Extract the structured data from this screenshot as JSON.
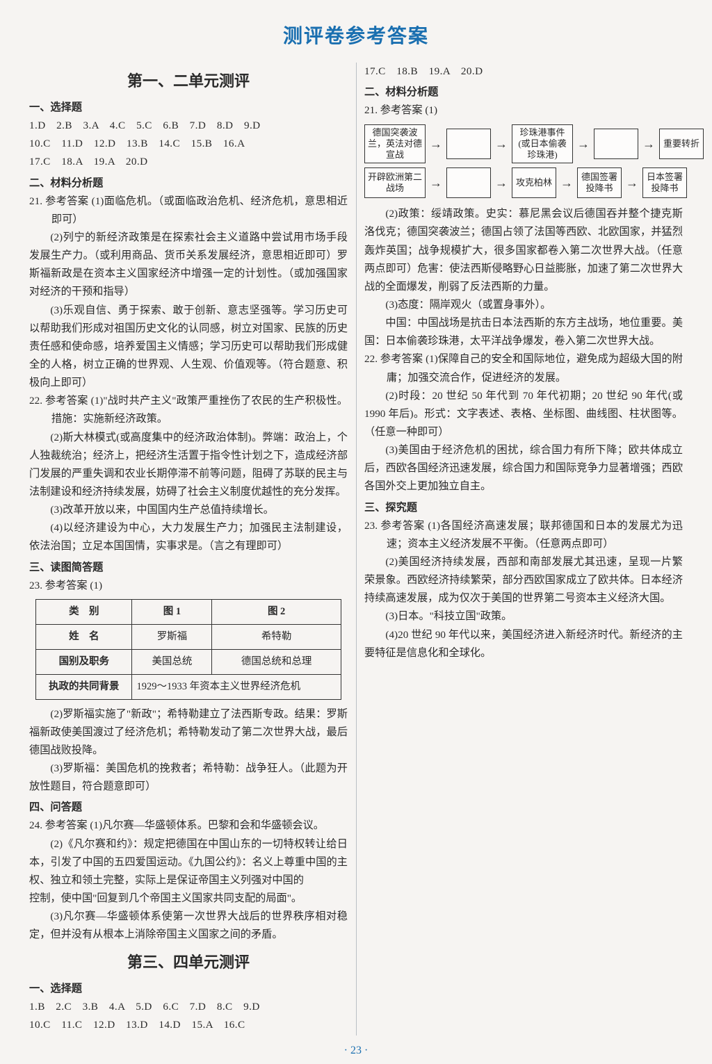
{
  "page_title": "测评卷参考答案",
  "page_number": "· 23 ·",
  "unit1": {
    "title": "第一、二单元测评",
    "sec_choice_title": "一、选择题",
    "choice_answers": [
      "1.D　2.B　3.A　4.C　5.C　6.B　7.D　8.D　9.D",
      "10.C　11.D　12.D　13.B　14.C　15.B　16.A",
      "17.C　18.A　19.A　20.D"
    ],
    "sec_material_title": "二、材料分析题",
    "q21_head": "21. 参考答案 (1)面临危机。（或面临政治危机、经济危机，意思相近即可）",
    "q21_p2": "(2)列宁的新经济政策是在探索社会主义道路中尝试用市场手段发展生产力。（或利用商品、货币关系发展经济，意思相近即可）罗斯福新政是在资本主义国家经济中增强一定的计划性。（或加强国家对经济的干预和指导）",
    "q21_p3": "(3)乐观自信、勇于探索、敢于创新、意志坚强等。学习历史可以帮助我们形成对祖国历史文化的认同感，树立对国家、民族的历史责任感和使命感，培养爱国主义情感；学习历史可以帮助我们形成健全的人格，树立正确的世界观、人生观、价值观等。（符合题意、积极向上即可）",
    "q22_head": "22. 参考答案 (1)\"战时共产主义\"政策严重挫伤了农民的生产积极性。措施：实施新经济政策。",
    "q22_p2": "(2)斯大林模式(或高度集中的经济政治体制)。弊端：政治上，个人独裁统治；经济上，把经济生活置于指令性计划之下，造成经济部门发展的严重失调和农业长期停滞不前等问题，阻碍了苏联的民主与法制建设和经济持续发展，妨碍了社会主义制度优越性的充分发挥。",
    "q22_p3": "(3)改革开放以来，中国国内生产总值持续增长。",
    "q22_p4": "(4)以经济建设为中心，大力发展生产力；加强民主法制建设，依法治国；立足本国国情，实事求是。（言之有理即可）",
    "sec_read_title": "三、读图简答题",
    "q23_head": "23. 参考答案 (1)",
    "table": {
      "headers": [
        "类　别",
        "图 1",
        "图 2"
      ],
      "rows": [
        [
          "姓　名",
          "罗斯福",
          "希特勒"
        ],
        [
          "国别及职务",
          "美国总统",
          "德国总统和总理"
        ]
      ],
      "span_row_label": "执政的共同背景",
      "span_row_value": "1929～1933 年资本主义世界经济危机"
    },
    "q23_p2": "(2)罗斯福实施了\"新政\"；希特勒建立了法西斯专政。结果：罗斯福新政使美国渡过了经济危机；希特勒发动了第二次世界大战，最后德国战败投降。",
    "q23_p3": "(3)罗斯福：美国危机的挽救者；希特勒：战争狂人。（此题为开放性题目，符合题意即可）",
    "sec_ask_title": "四、问答题",
    "q24_head": "24. 参考答案 (1)凡尔赛—华盛顿体系。巴黎和会和华盛顿会议。",
    "q24_p2": "(2)《凡尔赛和约》：规定把德国在中国山东的一切特权转让给日本，引发了中国的五四爱国运动。《九国公约》：名义上尊重中国的主权、独立和领土完整，实际上是保证帝国主义列强对中国的",
    "q24_cont": "控制，使中国\"回复到几个帝国主义国家共同支配的局面\"。",
    "q24_p3": "(3)凡尔赛—华盛顿体系使第一次世界大战后的世界秩序相对稳定，但并没有从根本上消除帝国主义国家之间的矛盾。"
  },
  "unit2": {
    "title": "第三、四单元测评",
    "sec_choice_title": "一、选择题",
    "choice_answers": [
      "1.B　2.C　3.B　4.A　5.D　6.C　7.D　8.C　9.D",
      "10.C　11.C　12.D　13.D　14.D　15.A　16.C",
      "17.C　18.B　19.A　20.D"
    ],
    "sec_material_title": "二、材料分析题",
    "q21_head": "21. 参考答案 (1)",
    "diagram": {
      "row1": [
        "德国突袭波兰，英法对德宣战",
        "",
        "珍珠港事件(或日本偷袭珍珠港)",
        "",
        "重要转折"
      ],
      "row2": [
        "开辟欧洲第二战场",
        "",
        "攻克柏林",
        "德国签署投降书",
        "日本签署投降书"
      ]
    },
    "q21_p2": "(2)政策：绥靖政策。史实：慕尼黑会议后德国吞并整个捷克斯洛伐克；德国突袭波兰；德国占领了法国等西欧、北欧国家，并猛烈轰炸英国；战争规模扩大，很多国家都卷入第二次世界大战。（任意两点即可）危害：使法西斯侵略野心日益膨胀，加速了第二次世界大战的全面爆发，削弱了反法西斯的力量。",
    "q21_p3": "(3)态度：隔岸观火（或置身事外）。",
    "q21_p3b": "中国：中国战场是抗击日本法西斯的东方主战场，地位重要。美国：日本偷袭珍珠港，太平洋战争爆发，卷入第二次世界大战。",
    "q22_head": "22. 参考答案 (1)保障自己的安全和国际地位，避免成为超级大国的附庸；加强交流合作，促进经济的发展。",
    "q22_p2": "(2)时段：20 世纪 50 年代到 70 年代初期；20 世纪 90 年代(或 1990 年后)。形式：文字表述、表格、坐标图、曲线图、柱状图等。（任意一种即可）",
    "q22_p3": "(3)美国由于经济危机的困扰，综合国力有所下降；欧共体成立后，西欧各国经济迅速发展，综合国力和国际竞争力显著增强；西欧各国外交上更加独立自主。",
    "sec_explore_title": "三、探究题",
    "q23_head": "23. 参考答案 (1)各国经济高速发展；联邦德国和日本的发展尤为迅速；资本主义经济发展不平衡。（任意两点即可）",
    "q23_p2": "(2)美国经济持续发展，西部和南部发展尤其迅速，呈现一片繁荣景象。西欧经济持续繁荣，部分西欧国家成立了欧共体。日本经济持续高速发展，成为仅次于美国的世界第二号资本主义经济大国。",
    "q23_p3": "(3)日本。\"科技立国\"政策。",
    "q23_p4": "(4)20 世纪 90 年代以来，美国经济进入新经济时代。新经济的主要特征是信息化和全球化。"
  }
}
